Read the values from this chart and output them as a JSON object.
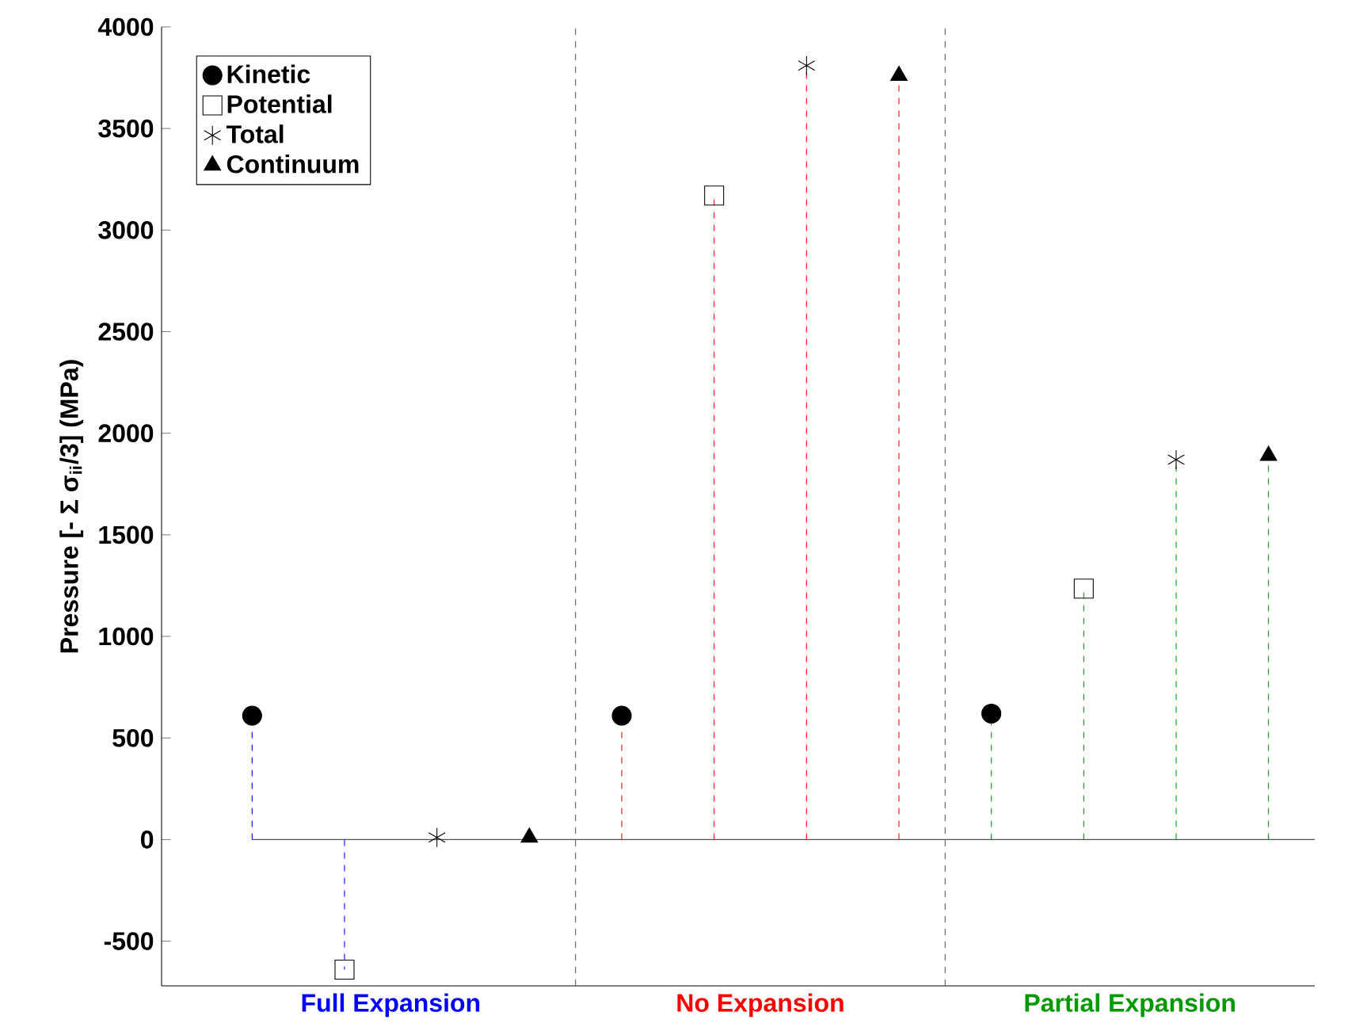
{
  "chart_data": {
    "type": "lollipop",
    "ylabel": "Pressure [- Σ σ$_{ii}$/3]   (MPa)",
    "categories": [
      "Full Expansion",
      "No Expansion",
      "Partial Expansion"
    ],
    "colors": [
      "#0000ff",
      "#ff0000",
      "#009900"
    ],
    "series": [
      {
        "name": "Kinetic",
        "color": "#000000",
        "marker": "circle",
        "values": [
          610,
          610,
          620
        ]
      },
      {
        "name": "Potential",
        "color": "#000000",
        "marker": "square",
        "values": [
          -640,
          3170,
          1235
        ]
      },
      {
        "name": "Total",
        "color": "#000000",
        "marker": "cross",
        "values": [
          10,
          3810,
          1870
        ]
      },
      {
        "name": "Continuum",
        "color": "#000000",
        "marker": "triangle",
        "values": [
          10,
          3760,
          1890
        ]
      }
    ],
    "ylim": [
      -720,
      4000
    ],
    "yticks": [
      -500,
      0,
      500,
      1000,
      1500,
      2000,
      2500,
      3000,
      3500,
      4000
    ],
    "ref_lines": [
      {
        "axis": "y",
        "value": 0,
        "color": "#555555",
        "line_style": "solid"
      }
    ],
    "line_style": "dashed",
    "legend": "top left"
  }
}
